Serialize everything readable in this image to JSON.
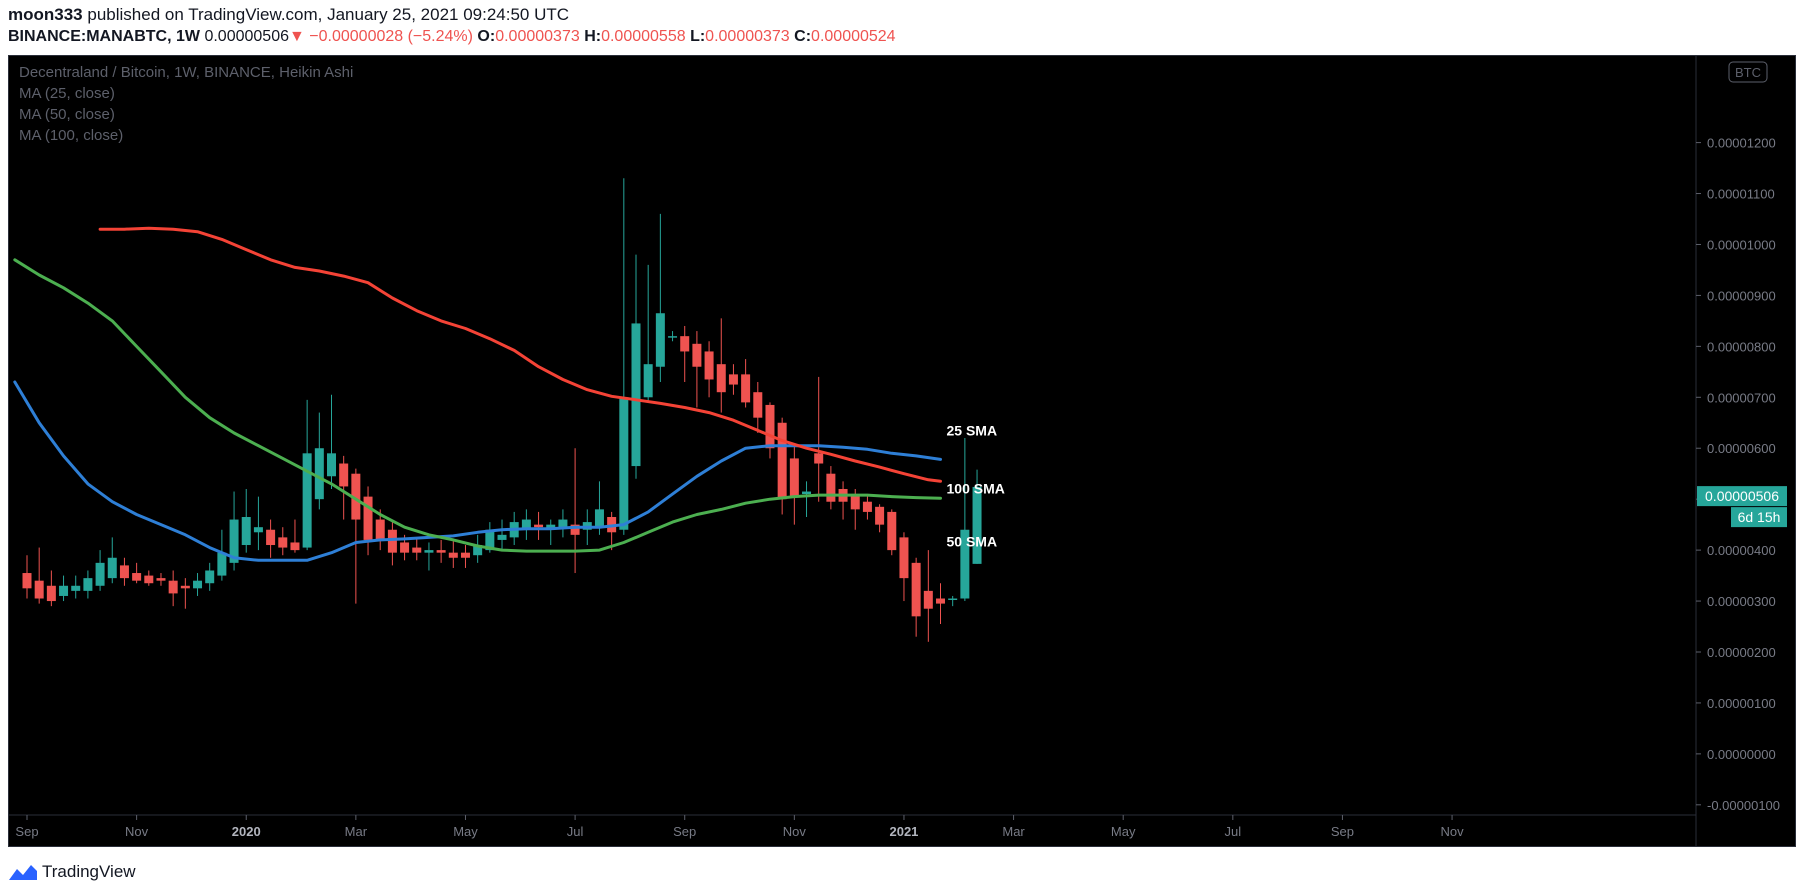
{
  "header": {
    "author": "moon333",
    "published_text": "published on TradingView.com, January 25, 2021 09:24:50 UTC",
    "symbol": "BINANCE:MANABTC,",
    "interval": "1W",
    "last": "0.00000506",
    "arrow": "▼",
    "change": "−0.00000028 (−5.24%)",
    "o_label": "O:",
    "o_value": "0.00000373",
    "h_label": "H:",
    "h_value": "0.00000558",
    "l_label": "L:",
    "l_value": "0.00000373",
    "c_label": "C:",
    "c_value": "0.00000524"
  },
  "legend": {
    "title": "Decentraland / Bitcoin, 1W, BINANCE, Heikin Ashi",
    "ma25": "MA (25, close)",
    "ma50": "MA (50, close)",
    "ma100": "MA (100, close)"
  },
  "footer": {
    "brand": "TradingView"
  },
  "colors": {
    "up": "#26a69a",
    "down": "#ef5350",
    "ma25": "#2e7fd6",
    "ma50": "#4caf50",
    "ma100": "#f44336",
    "background": "#000000",
    "axis_text": "#787b86"
  },
  "chart_data": {
    "type": "candlestick",
    "title": "Decentraland / Bitcoin, 1W, BINANCE, Heikin Ashi",
    "currency_badge": "BTC",
    "price_label": "0.00000506",
    "countdown_label": "6d 15h",
    "ylim": [
      -1.2e-06,
      1.37e-05
    ],
    "y_ticks": [
      "0.00001200",
      "0.00001100",
      "0.00001000",
      "0.00000900",
      "0.00000800",
      "0.00000700",
      "0.00000600",
      "0.00000500",
      "0.00000400",
      "0.00000300",
      "0.00000200",
      "0.00000100",
      "0.00000000",
      "-0.00000100"
    ],
    "x_ticks": [
      "Sep",
      "Nov",
      "2020",
      "Mar",
      "May",
      "Jul",
      "Sep",
      "Nov",
      "2021",
      "Mar",
      "May",
      "Jul",
      "Sep",
      "Nov"
    ],
    "x_tick_weeks": [
      0,
      9,
      18,
      27,
      36,
      45,
      54,
      63,
      72,
      81,
      90,
      99,
      108,
      117
    ],
    "bold_x_ticks": [
      "2020",
      "2021"
    ],
    "annotations": [
      {
        "text": "25 SMA",
        "week": 75,
        "price": 6.25e-06
      },
      {
        "text": "100 SMA",
        "week": 75,
        "price": 5.11e-06
      },
      {
        "text": "50 SMA",
        "week": 75,
        "price": 4.07e-06
      }
    ],
    "candles": [
      {
        "o": 3.55,
        "h": 3.9,
        "l": 3.05,
        "c": 3.25
      },
      {
        "o": 3.4,
        "h": 4.05,
        "l": 2.95,
        "c": 3.05
      },
      {
        "o": 3.3,
        "h": 3.6,
        "l": 2.9,
        "c": 3.0
      },
      {
        "o": 3.1,
        "h": 3.5,
        "l": 3.0,
        "c": 3.3
      },
      {
        "o": 3.2,
        "h": 3.5,
        "l": 3.05,
        "c": 3.3
      },
      {
        "o": 3.2,
        "h": 3.6,
        "l": 3.05,
        "c": 3.45
      },
      {
        "o": 3.3,
        "h": 4.0,
        "l": 3.2,
        "c": 3.75
      },
      {
        "o": 3.45,
        "h": 4.25,
        "l": 3.35,
        "c": 3.85
      },
      {
        "o": 3.7,
        "h": 3.85,
        "l": 3.3,
        "c": 3.45
      },
      {
        "o": 3.55,
        "h": 3.75,
        "l": 3.35,
        "c": 3.4
      },
      {
        "o": 3.5,
        "h": 3.6,
        "l": 3.3,
        "c": 3.35
      },
      {
        "o": 3.45,
        "h": 3.55,
        "l": 3.3,
        "c": 3.4
      },
      {
        "o": 3.4,
        "h": 3.6,
        "l": 2.9,
        "c": 3.15
      },
      {
        "o": 3.3,
        "h": 3.45,
        "l": 2.85,
        "c": 3.25
      },
      {
        "o": 3.25,
        "h": 3.55,
        "l": 3.1,
        "c": 3.4
      },
      {
        "o": 3.35,
        "h": 3.75,
        "l": 3.2,
        "c": 3.6
      },
      {
        "o": 3.5,
        "h": 4.4,
        "l": 3.4,
        "c": 3.95
      },
      {
        "o": 3.75,
        "h": 5.15,
        "l": 3.6,
        "c": 4.6
      },
      {
        "o": 4.1,
        "h": 5.2,
        "l": 3.95,
        "c": 4.65
      },
      {
        "o": 4.35,
        "h": 5.05,
        "l": 4.0,
        "c": 4.45
      },
      {
        "o": 4.4,
        "h": 4.6,
        "l": 3.85,
        "c": 4.1
      },
      {
        "o": 4.25,
        "h": 4.45,
        "l": 3.9,
        "c": 4.05
      },
      {
        "o": 4.15,
        "h": 4.6,
        "l": 3.95,
        "c": 4.0
      },
      {
        "o": 4.05,
        "h": 6.95,
        "l": 4.0,
        "c": 5.9
      },
      {
        "o": 5.0,
        "h": 6.7,
        "l": 4.8,
        "c": 6.0
      },
      {
        "o": 5.45,
        "h": 7.05,
        "l": 5.2,
        "c": 5.9
      },
      {
        "o": 5.7,
        "h": 5.85,
        "l": 4.6,
        "c": 5.25
      },
      {
        "o": 5.5,
        "h": 5.6,
        "l": 2.95,
        "c": 4.6
      },
      {
        "o": 5.05,
        "h": 5.25,
        "l": 3.9,
        "c": 4.2
      },
      {
        "o": 4.6,
        "h": 4.8,
        "l": 4.0,
        "c": 4.2
      },
      {
        "o": 4.4,
        "h": 4.6,
        "l": 3.7,
        "c": 3.95
      },
      {
        "o": 4.15,
        "h": 4.3,
        "l": 3.8,
        "c": 3.95
      },
      {
        "o": 4.05,
        "h": 4.25,
        "l": 3.8,
        "c": 3.95
      },
      {
        "o": 3.95,
        "h": 4.15,
        "l": 3.6,
        "c": 4.0
      },
      {
        "o": 4.0,
        "h": 4.2,
        "l": 3.75,
        "c": 3.95
      },
      {
        "o": 3.95,
        "h": 4.2,
        "l": 3.65,
        "c": 3.85
      },
      {
        "o": 3.95,
        "h": 4.1,
        "l": 3.65,
        "c": 3.85
      },
      {
        "o": 3.9,
        "h": 4.3,
        "l": 3.75,
        "c": 4.1
      },
      {
        "o": 4.0,
        "h": 4.55,
        "l": 3.95,
        "c": 4.4
      },
      {
        "o": 4.2,
        "h": 4.6,
        "l": 4.0,
        "c": 4.3
      },
      {
        "o": 4.25,
        "h": 4.75,
        "l": 4.1,
        "c": 4.55
      },
      {
        "o": 4.4,
        "h": 4.8,
        "l": 4.2,
        "c": 4.6
      },
      {
        "o": 4.5,
        "h": 4.75,
        "l": 4.2,
        "c": 4.45
      },
      {
        "o": 4.4,
        "h": 4.6,
        "l": 4.1,
        "c": 4.5
      },
      {
        "o": 4.45,
        "h": 4.8,
        "l": 4.25,
        "c": 4.6
      },
      {
        "o": 4.5,
        "h": 6.0,
        "l": 3.55,
        "c": 4.3
      },
      {
        "o": 4.4,
        "h": 4.8,
        "l": 4.1,
        "c": 4.55
      },
      {
        "o": 4.45,
        "h": 5.35,
        "l": 4.3,
        "c": 4.8
      },
      {
        "o": 4.65,
        "h": 4.75,
        "l": 4.0,
        "c": 4.35
      },
      {
        "o": 4.4,
        "h": 11.3,
        "l": 4.3,
        "c": 7.0
      },
      {
        "o": 5.65,
        "h": 9.8,
        "l": 5.4,
        "c": 8.45
      },
      {
        "o": 7.0,
        "h": 9.6,
        "l": 6.9,
        "c": 7.65
      },
      {
        "o": 7.6,
        "h": 10.6,
        "l": 7.3,
        "c": 8.65
      },
      {
        "o": 8.2,
        "h": 8.3,
        "l": 8.1,
        "c": 8.2
      },
      {
        "o": 8.2,
        "h": 8.4,
        "l": 7.3,
        "c": 7.9
      },
      {
        "o": 8.05,
        "h": 8.3,
        "l": 6.8,
        "c": 7.6
      },
      {
        "o": 7.9,
        "h": 8.1,
        "l": 7.0,
        "c": 7.35
      },
      {
        "o": 7.65,
        "h": 8.55,
        "l": 6.7,
        "c": 7.1
      },
      {
        "o": 7.45,
        "h": 7.65,
        "l": 7.05,
        "c": 7.25
      },
      {
        "o": 7.45,
        "h": 7.75,
        "l": 6.8,
        "c": 6.9
      },
      {
        "o": 7.1,
        "h": 7.3,
        "l": 6.3,
        "c": 6.6
      },
      {
        "o": 6.85,
        "h": 6.9,
        "l": 5.8,
        "c": 6.0
      },
      {
        "o": 6.5,
        "h": 6.6,
        "l": 4.7,
        "c": 5.0
      },
      {
        "o": 5.8,
        "h": 6.05,
        "l": 4.5,
        "c": 5.05
      },
      {
        "o": 5.1,
        "h": 5.35,
        "l": 4.65,
        "c": 5.15
      },
      {
        "o": 5.9,
        "h": 7.4,
        "l": 4.95,
        "c": 5.7
      },
      {
        "o": 5.5,
        "h": 5.65,
        "l": 4.8,
        "c": 4.95
      },
      {
        "o": 5.2,
        "h": 5.35,
        "l": 4.6,
        "c": 4.95
      },
      {
        "o": 5.1,
        "h": 5.2,
        "l": 4.4,
        "c": 4.8
      },
      {
        "o": 4.95,
        "h": 5.1,
        "l": 4.6,
        "c": 4.75
      },
      {
        "o": 4.85,
        "h": 4.9,
        "l": 4.35,
        "c": 4.5
      },
      {
        "o": 4.75,
        "h": 4.8,
        "l": 3.9,
        "c": 4.0
      },
      {
        "o": 4.25,
        "h": 4.35,
        "l": 3.0,
        "c": 3.45
      },
      {
        "o": 3.75,
        "h": 3.85,
        "l": 2.3,
        "c": 2.7
      },
      {
        "o": 3.2,
        "h": 4.0,
        "l": 2.2,
        "c": 2.85
      },
      {
        "o": 3.05,
        "h": 3.35,
        "l": 2.55,
        "c": 2.95
      },
      {
        "o": 3.05,
        "h": 3.1,
        "l": 2.9,
        "c": 3.05
      },
      {
        "o": 3.05,
        "h": 6.2,
        "l": 3.0,
        "c": 4.4
      },
      {
        "o": 3.73,
        "h": 5.58,
        "l": 3.73,
        "c": 5.24
      }
    ],
    "first_candle_week": 0,
    "series": [
      {
        "name": "MA (25, close)",
        "x": [
          -1,
          1,
          3,
          5,
          7,
          9,
          11,
          13,
          15,
          17,
          19,
          21,
          23,
          25,
          27,
          29,
          31,
          33,
          35,
          37,
          39,
          41,
          43,
          45,
          47,
          49,
          51,
          53,
          55,
          57,
          59,
          61,
          63,
          65,
          67,
          69,
          71,
          73,
          75
        ],
        "y": [
          7.3,
          6.5,
          5.85,
          5.3,
          4.95,
          4.7,
          4.5,
          4.3,
          4.05,
          3.85,
          3.8,
          3.8,
          3.8,
          3.95,
          4.15,
          4.2,
          4.22,
          4.25,
          4.28,
          4.35,
          4.4,
          4.42,
          4.42,
          4.45,
          4.45,
          4.5,
          4.75,
          5.1,
          5.45,
          5.75,
          6.0,
          6.05,
          6.05,
          6.05,
          6.02,
          5.98,
          5.9,
          5.85,
          5.78
        ]
      },
      {
        "name": "MA (50, close)",
        "x": [
          -1,
          1,
          3,
          5,
          7,
          9,
          11,
          13,
          15,
          17,
          19,
          21,
          23,
          25,
          27,
          29,
          31,
          33,
          35,
          37,
          39,
          41,
          43,
          45,
          47,
          49,
          51,
          53,
          55,
          57,
          59,
          61,
          63,
          65,
          67,
          69,
          71,
          73,
          75
        ],
        "y": [
          9.7,
          9.4,
          9.15,
          8.85,
          8.5,
          8.0,
          7.5,
          7.0,
          6.6,
          6.3,
          6.05,
          5.8,
          5.55,
          5.3,
          5.0,
          4.7,
          4.45,
          4.3,
          4.2,
          4.08,
          4.0,
          3.98,
          3.98,
          3.98,
          4.0,
          4.15,
          4.35,
          4.55,
          4.7,
          4.8,
          4.92,
          5.0,
          5.05,
          5.08,
          5.08,
          5.08,
          5.05,
          5.03,
          5.02
        ]
      },
      {
        "name": "MA (100, close)",
        "x": [
          6,
          8,
          10,
          12,
          14,
          16,
          18,
          20,
          22,
          24,
          26,
          28,
          30,
          32,
          34,
          36,
          38,
          40,
          42,
          44,
          46,
          48,
          50,
          52,
          54,
          56,
          58,
          60,
          62,
          64,
          66,
          68,
          70,
          72,
          74,
          75
        ],
        "y": [
          10.3,
          10.3,
          10.32,
          10.3,
          10.25,
          10.1,
          9.9,
          9.7,
          9.55,
          9.48,
          9.38,
          9.25,
          8.95,
          8.7,
          8.5,
          8.35,
          8.15,
          7.92,
          7.6,
          7.35,
          7.15,
          7.02,
          6.95,
          6.88,
          6.8,
          6.7,
          6.55,
          6.35,
          6.15,
          6.0,
          5.88,
          5.75,
          5.63,
          5.5,
          5.38,
          5.35
        ]
      }
    ]
  }
}
